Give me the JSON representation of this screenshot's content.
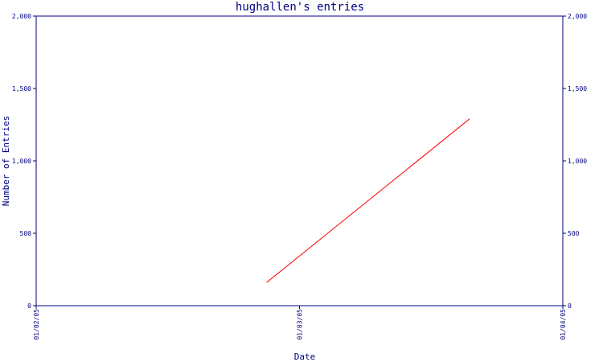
{
  "chart_data": {
    "type": "line",
    "title": "hughallen's entries",
    "xlabel": "Date",
    "ylabel": "Number of Entries",
    "x_ticks": [
      "01/02/05",
      "01/03/05",
      "01/04/05"
    ],
    "y_ticks": [
      "0",
      "500",
      "1,000",
      "1,500",
      "2,000"
    ],
    "ylim": [
      0,
      2000
    ],
    "xlim": [
      "2005-01-02",
      "2005-01-04"
    ],
    "y_axis_both_sides": true,
    "grid": false,
    "series": [
      {
        "color": "#ff0000",
        "points": [
          {
            "x": "2005-01-02T21:00",
            "y": 160
          },
          {
            "x": "2005-01-03T15:30",
            "y": 1290
          }
        ]
      }
    ]
  },
  "colors": {
    "axis": "#000080",
    "line": "#ff0000",
    "background": "#ffffff"
  }
}
